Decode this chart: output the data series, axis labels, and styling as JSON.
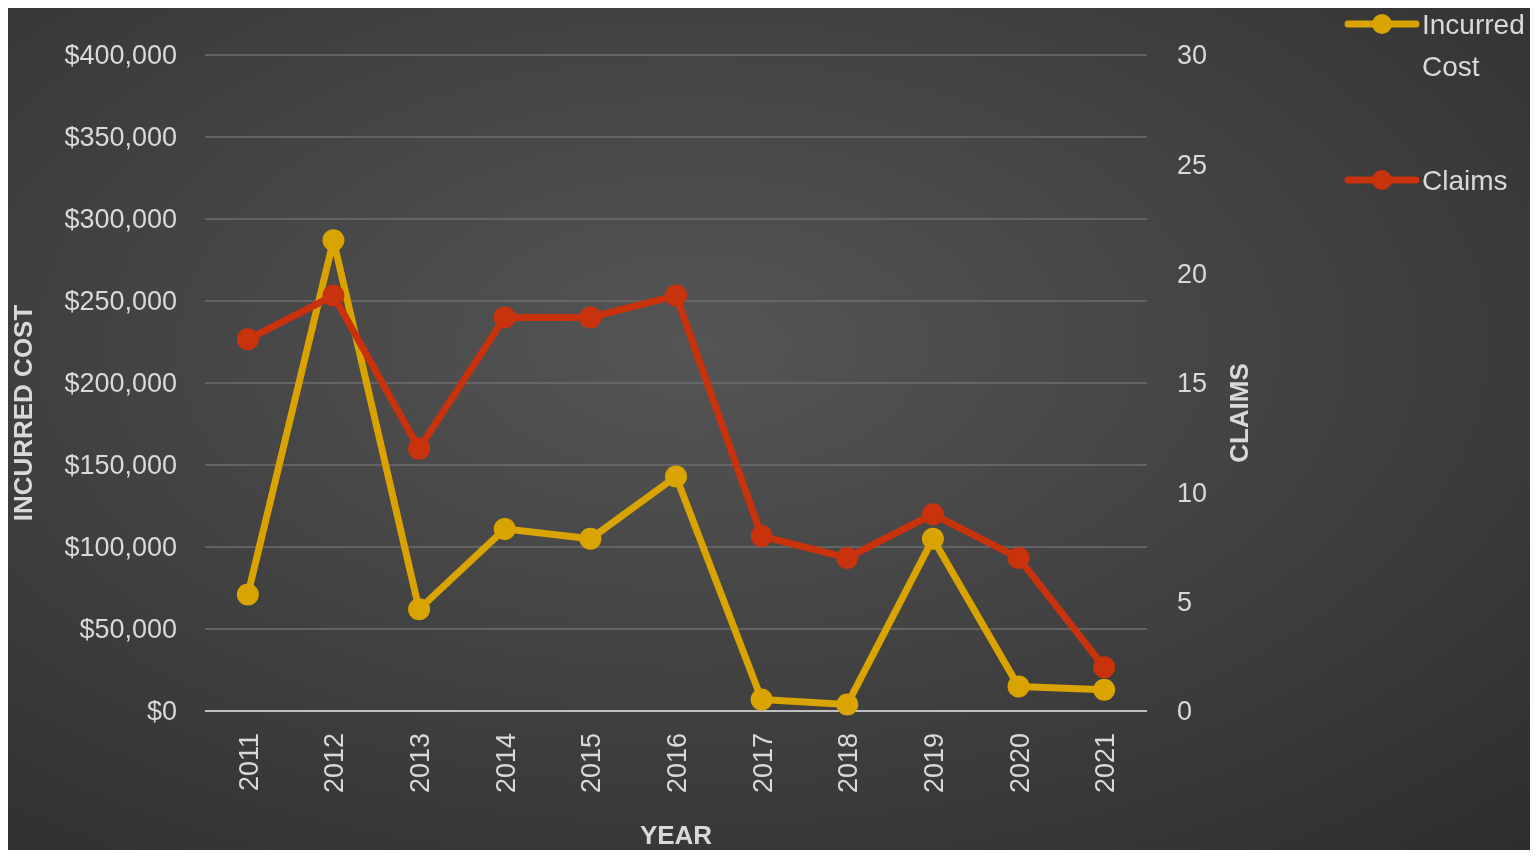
{
  "chart_data": {
    "type": "line",
    "xlabel": "YEAR",
    "ylabel": "INCURRED COST",
    "y2label": "CLAIMS",
    "categories": [
      "2011",
      "2012",
      "2013",
      "2014",
      "2015",
      "2016",
      "2017",
      "2018",
      "2019",
      "2020",
      "2021"
    ],
    "series": [
      {
        "name": "Incurred Cost",
        "color": "#d9a300",
        "values": [
          71000,
          287000,
          62000,
          111000,
          105000,
          143000,
          7000,
          4000,
          105000,
          15000,
          13000
        ]
      },
      {
        "name": "Claims",
        "color": "#c8320c",
        "axis": "y2",
        "values": [
          17,
          19,
          12,
          18,
          18,
          19,
          8,
          7,
          9,
          7,
          2
        ]
      }
    ],
    "ylim": [
      0,
      400000
    ],
    "yticks": [
      {
        "value": 0,
        "label": "$0"
      },
      {
        "value": 50000,
        "label": "$50,000"
      },
      {
        "value": 100000,
        "label": "$100,000"
      },
      {
        "value": 150000,
        "label": "$150,000"
      },
      {
        "value": 200000,
        "label": "$200,000"
      },
      {
        "value": 250000,
        "label": "$250,000"
      },
      {
        "value": 300000,
        "label": "$300,000"
      },
      {
        "value": 350000,
        "label": "$350,000"
      },
      {
        "value": 400000,
        "label": "$400,000"
      }
    ],
    "y2lim": [
      0,
      30
    ],
    "y2ticks": [
      0,
      5,
      10,
      15,
      20,
      25,
      30
    ],
    "grid": "y",
    "legend": "top right",
    "marker": "circle",
    "line_style": "solid"
  }
}
